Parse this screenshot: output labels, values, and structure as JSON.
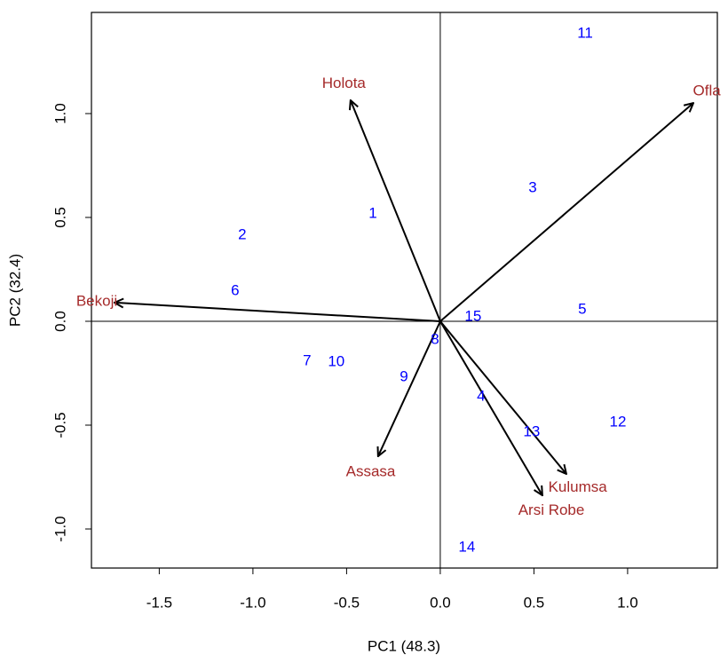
{
  "chart_data": {
    "type": "biplot",
    "x_label": "PC1 (48.3)",
    "y_label": "PC2 (32.4)",
    "xlim": [
      -1.862,
      1.479
    ],
    "ylim": [
      -1.188,
      1.487
    ],
    "xticks": [
      {
        "value": -1.5,
        "label": "-1.5"
      },
      {
        "value": -1,
        "label": "-1.0"
      },
      {
        "value": -0.5,
        "label": "-0.5"
      },
      {
        "value": 0,
        "label": "0.0"
      },
      {
        "value": 0.5,
        "label": "0.5"
      },
      {
        "value": 1,
        "label": "1.0"
      }
    ],
    "yticks": [
      {
        "value": -1,
        "label": "-1.0"
      },
      {
        "value": -0.5,
        "label": "-0.5"
      },
      {
        "value": 0,
        "label": "0.0"
      },
      {
        "value": 0.5,
        "label": "0.5"
      },
      {
        "value": 1,
        "label": "1.0"
      }
    ],
    "points": {
      "color": "#0000ff",
      "labels": [
        "1",
        "2",
        "3",
        "4",
        "5",
        "6",
        "7",
        "8",
        "9",
        "10",
        "11",
        "12",
        "13",
        "14",
        "15"
      ],
      "x": [
        -0.36,
        -1.057,
        0.493,
        0.218,
        0.758,
        -1.095,
        -0.711,
        -0.028,
        -0.194,
        -0.555,
        0.773,
        0.948,
        0.488,
        0.142,
        0.175
      ],
      "y": [
        0.517,
        0.415,
        0.641,
        -0.363,
        0.056,
        0.145,
        -0.192,
        -0.09,
        -0.269,
        -0.197,
        1.385,
        -0.487,
        -0.534,
        -1.09,
        0.021
      ]
    },
    "loadings": {
      "color": "#a52a2a",
      "arrow_color": "#000000",
      "labels": [
        "Holota",
        "Ofla",
        "Bekoji",
        "Assasa",
        "Kulumsa",
        "Arsi Robe"
      ],
      "x": [
        -0.479,
        1.351,
        -1.739,
        -0.332,
        0.673,
        0.545
      ],
      "y": [
        1.064,
        1.051,
        0.09,
        -0.65,
        -0.735,
        -0.838
      ]
    }
  }
}
